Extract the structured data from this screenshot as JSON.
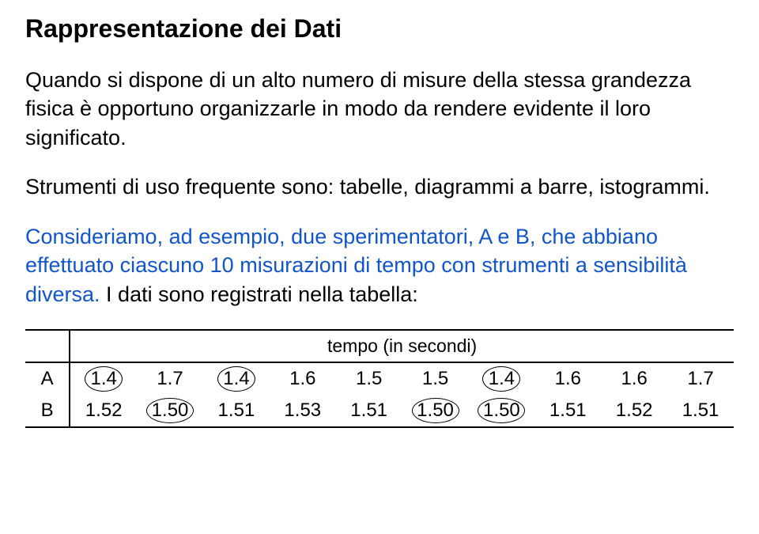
{
  "title": "Rappresentazione dei Dati",
  "paragraphs": {
    "p1": "Quando si dispone di un alto numero di misure della stessa grandezza fisica è opportuno organizzarle in modo da rendere evidente il loro significato.",
    "p2": "Strumenti di uso frequente sono: tabelle, diagrammi a barre, istogrammi.",
    "p3_part1": "Consideriamo, ad esempio, due sperimentatori, A e B, che abbiano effettuato ciascuno 10 misurazioni di tempo con strumenti a sensibilità diversa.",
    "p3_part2": " I dati sono registrati nella tabella:"
  },
  "table": {
    "header": "tempo (in secondi)",
    "rows": [
      {
        "label": "A",
        "values": [
          "1.4",
          "1.7",
          "1.4",
          "1.6",
          "1.5",
          "1.5",
          "1.4",
          "1.6",
          "1.6",
          "1.7"
        ],
        "circled": [
          0,
          2,
          6
        ]
      },
      {
        "label": "B",
        "values": [
          "1.52",
          "1.50",
          "1.51",
          "1.53",
          "1.51",
          "1.50",
          "1.50",
          "1.51",
          "1.52",
          "1.51"
        ],
        "circled": [
          1,
          5,
          6
        ]
      }
    ]
  },
  "styling": {
    "text_color": "#000000",
    "link_color": "#1155cc",
    "background": "#ffffff",
    "title_fontsize": 32,
    "body_fontsize": 27,
    "table_fontsize": 24,
    "border_color": "#000000"
  }
}
